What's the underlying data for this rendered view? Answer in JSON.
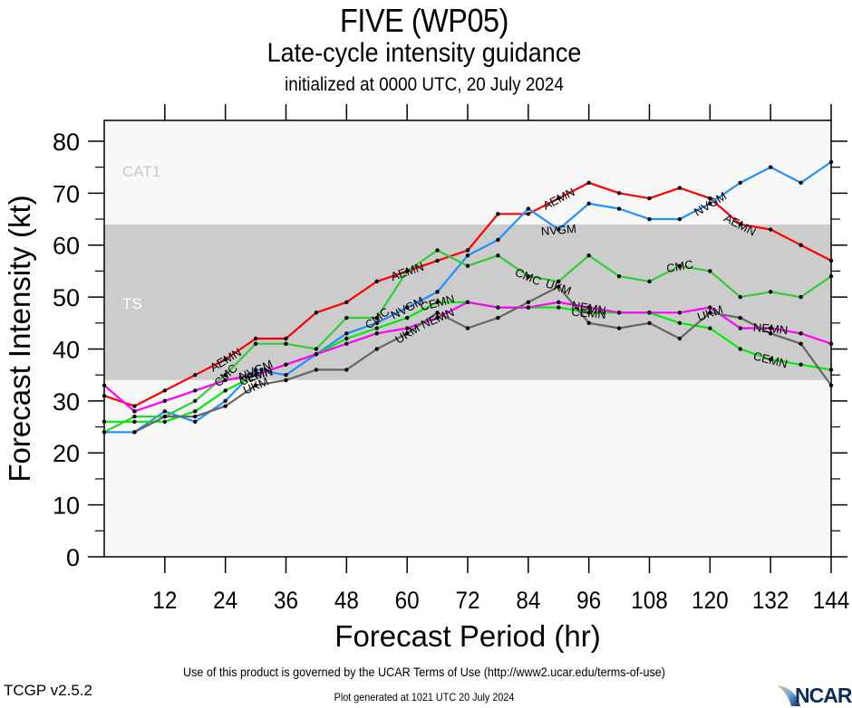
{
  "header": {
    "title": "FIVE (WP05)",
    "subtitle": "Late-cycle intensity guidance",
    "initialized": "initialized at 0000 UTC, 20 July 2024"
  },
  "footer": {
    "terms": "Use of this product is governed by the UCAR Terms of Use (http://www2.ucar.edu/terms-of-use)",
    "version": "TCGP v2.5.2",
    "generated": "Plot generated at 1021 UTC   20 July 2024",
    "logo_text": "NCAR"
  },
  "chart_data": {
    "type": "line",
    "title": "FIVE (WP05)",
    "subtitle": "Late-cycle intensity guidance",
    "xlabel": "Forecast Period (hr)",
    "ylabel": "Forecast Intensity (kt)",
    "xlim": [
      0,
      144
    ],
    "ylim": [
      0,
      84
    ],
    "xticks": [
      12,
      24,
      36,
      48,
      60,
      72,
      84,
      96,
      108,
      120,
      132,
      144
    ],
    "yticks": [
      0,
      10,
      20,
      30,
      40,
      50,
      60,
      70,
      80
    ],
    "grid": false,
    "bands": [
      {
        "label": "TS",
        "from": 34,
        "to": 64,
        "color": "#cccccc",
        "label_color": "#ffffff"
      },
      {
        "label": "CAT1",
        "from": 64,
        "to": 84,
        "color": "#f8f8f8",
        "label_color": "#c8c8c8"
      },
      {
        "label": "",
        "from": 0,
        "to": 34,
        "color": "#f8f8f8",
        "label_color": "#c8c8c8"
      }
    ],
    "x": [
      0,
      6,
      12,
      18,
      24,
      30,
      36,
      42,
      48,
      54,
      60,
      66,
      72,
      78,
      84,
      90,
      96,
      102,
      108,
      114,
      120,
      126,
      132,
      138,
      144
    ],
    "series": [
      {
        "name": "AEMN",
        "color": "#ff0000",
        "values": [
          31,
          29,
          32,
          35,
          38,
          42,
          42,
          47,
          49,
          53,
          55,
          57,
          59,
          66,
          66,
          69,
          72,
          70,
          69,
          71,
          69,
          64,
          63,
          60,
          57
        ],
        "label_at": [
          24,
          60,
          90,
          126
        ]
      },
      {
        "name": "NVGM",
        "color": "#1e90ff",
        "values": [
          24,
          24,
          28,
          26,
          30,
          36,
          35,
          39,
          43,
          45,
          48,
          51,
          58,
          61,
          67,
          63,
          68,
          67,
          65,
          65,
          68,
          72,
          75,
          72,
          76
        ],
        "label_at": [
          30,
          60,
          90,
          120
        ]
      },
      {
        "name": "CMC",
        "color": "#32cd32",
        "values": [
          24,
          27,
          27,
          30,
          35,
          41,
          41,
          40,
          46,
          46,
          55,
          59,
          56,
          58,
          54,
          53,
          58,
          54,
          53,
          56,
          55,
          50,
          51,
          50,
          54
        ],
        "label_at": [
          24,
          54,
          84,
          114
        ]
      },
      {
        "name": "CEMN",
        "color": "#00ee00",
        "values": [
          26,
          26,
          26,
          28,
          32,
          35,
          37,
          39,
          42,
          44,
          46,
          49,
          49,
          48,
          48,
          48,
          47,
          47,
          47,
          45,
          44,
          40,
          38,
          37,
          36
        ],
        "label_at": [
          30,
          66,
          96,
          132
        ]
      },
      {
        "name": "NEMN",
        "color": "#ff00ff",
        "values": [
          33,
          28,
          30,
          32,
          34,
          35,
          37,
          39,
          41,
          43,
          44,
          46,
          49,
          48,
          48,
          49,
          48,
          47,
          47,
          47,
          48,
          44,
          44,
          43,
          41
        ],
        "label_at": [
          30,
          66,
          96,
          132
        ]
      },
      {
        "name": "UKM",
        "color": "#666666",
        "values": [
          null,
          24,
          27,
          27,
          29,
          33,
          34,
          36,
          36,
          40,
          43,
          47,
          44,
          46,
          49,
          52,
          45,
          44,
          45,
          42,
          47,
          46,
          43,
          41,
          33
        ],
        "label_at": [
          30,
          60,
          90,
          120
        ]
      }
    ]
  }
}
